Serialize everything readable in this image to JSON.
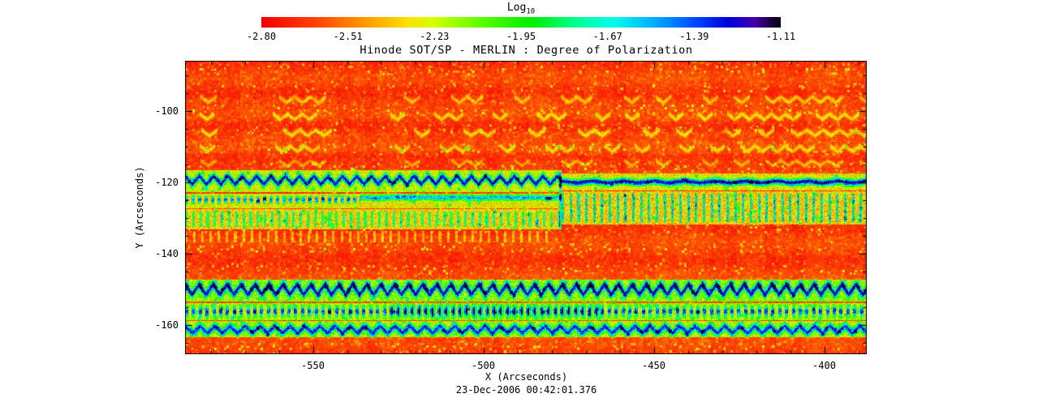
{
  "figure": {
    "title": "Hinode SOT/SP - MERLIN : Degree of Polarization",
    "timestamp": "23-Dec-2006 00:42:01.376",
    "x_label": "X (Arcseconds)",
    "y_label": "Y (Arcseconds)",
    "colorbar": {
      "label_main": "Log",
      "label_sub": "10",
      "tick_labels": [
        "-2.80",
        "-2.51",
        "-2.23",
        "-1.95",
        "-1.67",
        "-1.39",
        "-1.11"
      ]
    }
  },
  "chart_data": {
    "type": "heatmap",
    "title": "Hinode SOT/SP - MERLIN : Degree of Polarization",
    "xlabel": "X (Arcseconds)",
    "ylabel": "Y (Arcseconds)",
    "timestamp": "23-Dec-2006 00:42:01.376",
    "x_range": [
      -587.5,
      -387.5
    ],
    "y_range": [
      -168.2,
      -85.9
    ],
    "x_ticks": [
      -550,
      -500,
      -450,
      -400
    ],
    "y_ticks": [
      -100,
      -120,
      -140,
      -160
    ],
    "x_minor_step": 10,
    "y_minor_step": 5,
    "colorbar": {
      "label": "Log10",
      "min": -2.8,
      "max": -1.11,
      "ticks": [
        -2.8,
        -2.51,
        -2.23,
        -1.95,
        -1.67,
        -1.39,
        -1.11
      ]
    },
    "colormap": [
      {
        "pos": 0.0,
        "color": "#f40000"
      },
      {
        "pos": 0.1,
        "color": "#ff4000"
      },
      {
        "pos": 0.2,
        "color": "#ff9b00"
      },
      {
        "pos": 0.28,
        "color": "#ffe000"
      },
      {
        "pos": 0.33,
        "color": "#d8ff00"
      },
      {
        "pos": 0.42,
        "color": "#60ff00"
      },
      {
        "pos": 0.52,
        "color": "#00ee00"
      },
      {
        "pos": 0.6,
        "color": "#00ff88"
      },
      {
        "pos": 0.68,
        "color": "#00ffee"
      },
      {
        "pos": 0.76,
        "color": "#00aaff"
      },
      {
        "pos": 0.84,
        "color": "#0044ff"
      },
      {
        "pos": 0.9,
        "color": "#0000dd"
      },
      {
        "pos": 0.95,
        "color": "#4400aa"
      },
      {
        "pos": 1.0,
        "color": "#050008"
      }
    ],
    "background": {
      "seed": 7.77,
      "row_period": 5.6
    },
    "features": [
      {
        "kind": "zigzag",
        "x0": -587.5,
        "x1": -387.5,
        "y": -96.8,
        "amp": 0.8,
        "period": 4.6,
        "width": 0.45,
        "strength": 0.17,
        "sparse": true
      },
      {
        "kind": "zigzag",
        "x0": -587.5,
        "x1": -387.5,
        "y": -101.6,
        "amp": 0.8,
        "period": 4.3,
        "width": 0.45,
        "strength": 0.19,
        "sparse": true
      },
      {
        "kind": "zigzag",
        "x0": -587.5,
        "x1": -387.5,
        "y": -106.1,
        "amp": 0.8,
        "period": 4.8,
        "width": 0.45,
        "strength": 0.2,
        "sparse": true
      },
      {
        "kind": "zigzag",
        "x0": -587.5,
        "x1": -387.5,
        "y": -110.6,
        "amp": 0.8,
        "period": 4.4,
        "width": 0.45,
        "strength": 0.18,
        "sparse": true
      },
      {
        "kind": "zigzag",
        "x0": -587.5,
        "x1": -387.5,
        "y": -114.6,
        "amp": 0.7,
        "period": 4.6,
        "width": 0.4,
        "strength": 0.15,
        "sparse": true
      },
      {
        "kind": "band",
        "x0": -587.5,
        "x1": -477,
        "y_top": -116.6,
        "y_bot": -122.8,
        "base": 0.33
      },
      {
        "kind": "zigzag",
        "x0": -587.5,
        "x1": -477,
        "y": -119.4,
        "amp": 1.15,
        "period": 4.2,
        "width": 0.7,
        "strength": 0.62
      },
      {
        "kind": "band",
        "x0": -477,
        "x1": -387.5,
        "y_top": -117.6,
        "y_bot": -122.2,
        "base": 0.27
      },
      {
        "kind": "zigzag",
        "x0": -477,
        "x1": -387.5,
        "y": -119.9,
        "amp": 0.3,
        "period": 9.0,
        "width": 0.65,
        "strength": 0.68
      },
      {
        "kind": "band",
        "x0": -587.5,
        "x1": -477,
        "y_top": -123.2,
        "y_bot": -127.2,
        "base": 0.29
      },
      {
        "kind": "dots",
        "x0": -587.5,
        "x1": -536,
        "y": -124.9,
        "period": 1.9,
        "duty": 0.5,
        "width": 0.7,
        "strength": 0.52
      },
      {
        "kind": "zigzag",
        "x0": -536,
        "x1": -477,
        "y": -124.3,
        "amp": 0.15,
        "period": 10.0,
        "width": 0.55,
        "strength": 0.45
      },
      {
        "kind": "band",
        "x0": -477,
        "x1": -387.5,
        "y_top": -122.6,
        "y_bot": -131.8,
        "base": 0.26
      },
      {
        "kind": "comb",
        "x0": -477,
        "x1": -387.5,
        "y_top": -123.2,
        "y_bot": -131.2,
        "period": 2.3,
        "duty": 0.32,
        "strength": 0.45
      },
      {
        "kind": "band",
        "x0": -587.5,
        "x1": -477,
        "y_top": -127.6,
        "y_bot": -133.2,
        "base": 0.27
      },
      {
        "kind": "comb",
        "x0": -587.5,
        "x1": -477,
        "y_top": -128.2,
        "y_bot": -132.6,
        "period": 2.1,
        "duty": 0.36,
        "strength": 0.33
      },
      {
        "kind": "vline",
        "x": -477.3,
        "width": 0.35,
        "y_top": -116.8,
        "y_bot": -133.0,
        "strength": 0.35,
        "x0": -478.2,
        "x1": -476.4
      },
      {
        "kind": "comb",
        "x0": -587.5,
        "x1": -480,
        "y_top": -133.6,
        "y_bot": -136.8,
        "period": 2.4,
        "duty": 0.3,
        "strength": 0.16
      },
      {
        "kind": "band",
        "x0": -587.5,
        "x1": -387.5,
        "y_top": -147.2,
        "y_bot": -153.4,
        "base": 0.38
      },
      {
        "kind": "zigzag",
        "x0": -587.5,
        "x1": -387.5,
        "y": -150.1,
        "amp": 1.4,
        "period": 4.1,
        "width": 0.8,
        "strength": 0.58
      },
      {
        "kind": "dots",
        "x0": -587.5,
        "x1": -387.5,
        "y": -148.6,
        "period": 4.1,
        "duty": 0.3,
        "width": 0.7,
        "strength": 0.22
      },
      {
        "kind": "band",
        "x0": -587.5,
        "x1": -387.5,
        "y_top": -153.8,
        "y_bot": -158.6,
        "base": 0.36
      },
      {
        "kind": "dots",
        "x0": -587.5,
        "x1": -387.5,
        "y": -156.2,
        "period": 2.0,
        "duty": 0.48,
        "width": 0.95,
        "strength": 0.5
      },
      {
        "kind": "dots",
        "x0": -527,
        "x1": -465,
        "y": -156.0,
        "period": 2.0,
        "duty": 0.55,
        "width": 1.2,
        "strength": 0.28
      },
      {
        "kind": "band",
        "x0": -587.5,
        "x1": -387.5,
        "y_top": -158.9,
        "y_bot": -163.5,
        "base": 0.35
      },
      {
        "kind": "zigzag",
        "x0": -587.5,
        "x1": -387.5,
        "y": -161.3,
        "amp": 1.0,
        "period": 4.4,
        "width": 0.75,
        "strength": 0.55
      }
    ],
    "description": "Solar degree-of-polarization map (log10 scale): mostly low polarization (red/orange) with horizontal bands of high polarization (green/cyan/blue zigzag structures) near y=-120 and between y=-148 and y=-163 arcseconds."
  }
}
